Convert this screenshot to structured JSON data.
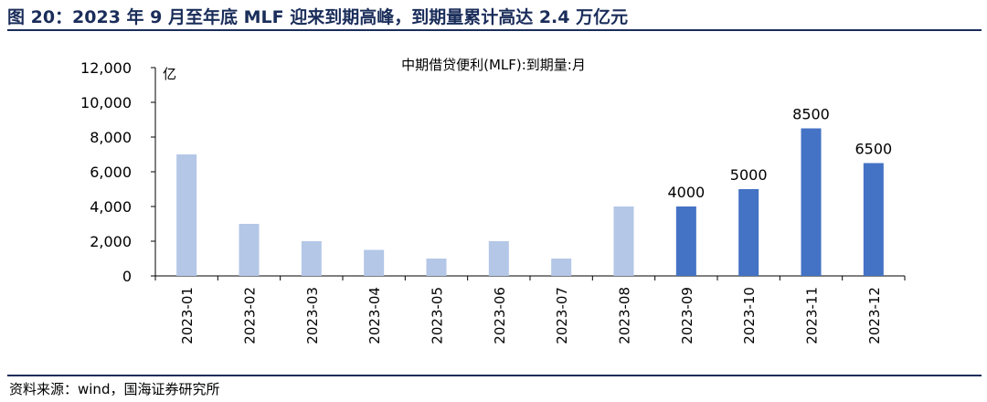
{
  "figure": {
    "title": "图 20：2023 年 9 月至年底 MLF 迎来到期高峰，到期量累计高达 2.4 万亿元",
    "source": "资料来源：wind，国海证券研究所"
  },
  "chart_data": {
    "type": "bar",
    "title": "中期借贷便利(MLF):到期量:月",
    "unit": "亿",
    "categories": [
      "2023-01",
      "2023-02",
      "2023-03",
      "2023-04",
      "2023-05",
      "2023-06",
      "2023-07",
      "2023-08",
      "2023-09",
      "2023-10",
      "2023-11",
      "2023-12"
    ],
    "values": [
      7000,
      3000,
      2000,
      1500,
      1000,
      2000,
      1000,
      4000,
      4000,
      5000,
      8500,
      6500
    ],
    "data_labels": [
      "",
      "",
      "",
      "",
      "",
      "",
      "",
      "",
      "4000",
      "5000",
      "8500",
      "6500"
    ],
    "highlighted": [
      false,
      false,
      false,
      false,
      false,
      false,
      false,
      false,
      true,
      true,
      true,
      true
    ],
    "ylim": [
      0,
      12000
    ],
    "yticks": [
      0,
      2000,
      4000,
      6000,
      8000,
      10000,
      12000
    ],
    "ytick_labels": [
      "0",
      "2,000",
      "4,000",
      "6,000",
      "8,000",
      "10,000",
      "12,000"
    ],
    "colors": {
      "normal": "#b4c7e7",
      "highlight": "#4472c4"
    },
    "grid": false,
    "legend": false
  }
}
